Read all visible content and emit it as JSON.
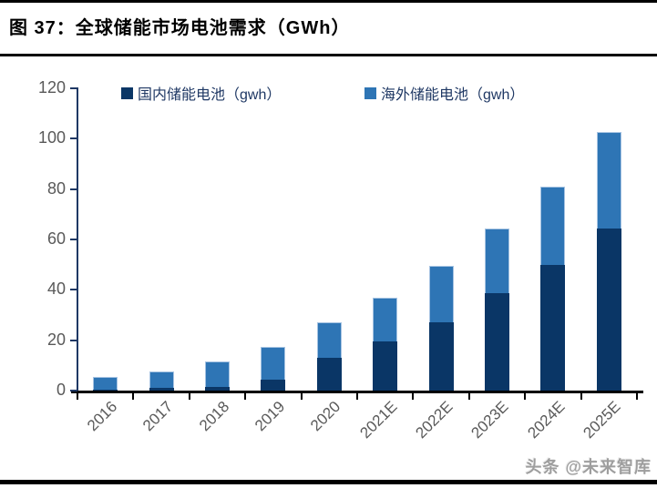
{
  "header": {
    "title": "图 37：全球储能市场电池需求（GWh）"
  },
  "watermark": {
    "text": "头条 @未来智库"
  },
  "colors": {
    "domestic_series": "#0A3666",
    "overseas_series": "#2E75B5",
    "axis_line": "#1F3864",
    "x_axis_line": "#000000",
    "tick_label": "#595959",
    "legend_text": "#1F3864",
    "rule": "#000000"
  },
  "chart_data": {
    "type": "bar",
    "stacked": true,
    "title": "图 37：全球储能市场电池需求（GWh）",
    "categories": [
      "2016",
      "2017",
      "2018",
      "2019",
      "2020",
      "2021E",
      "2022E",
      "2023E",
      "2024E",
      "2025E"
    ],
    "series": [
      {
        "key": "domestic",
        "name": "国内储能电池（gwh）",
        "color": "#0A3666",
        "values": [
          0.5,
          1,
          1.5,
          4.5,
          13,
          19.5,
          27,
          38.5,
          50,
          64.5
        ]
      },
      {
        "key": "overseas",
        "name": "海外储能电池（gwh）",
        "color": "#2E75B5",
        "values": [
          5,
          6.5,
          10,
          13,
          14,
          17.5,
          22.5,
          26,
          31,
          38
        ]
      }
    ],
    "totals": [
      5.5,
      7.5,
      11.5,
      17.5,
      27,
      37,
      49.5,
      64.5,
      81,
      102.5
    ],
    "xlabel": "",
    "ylabel": "",
    "ylim": [
      0,
      120
    ],
    "yticks": [
      0,
      20,
      40,
      60,
      80,
      100,
      120
    ],
    "legend_position": "top",
    "grid": false
  }
}
